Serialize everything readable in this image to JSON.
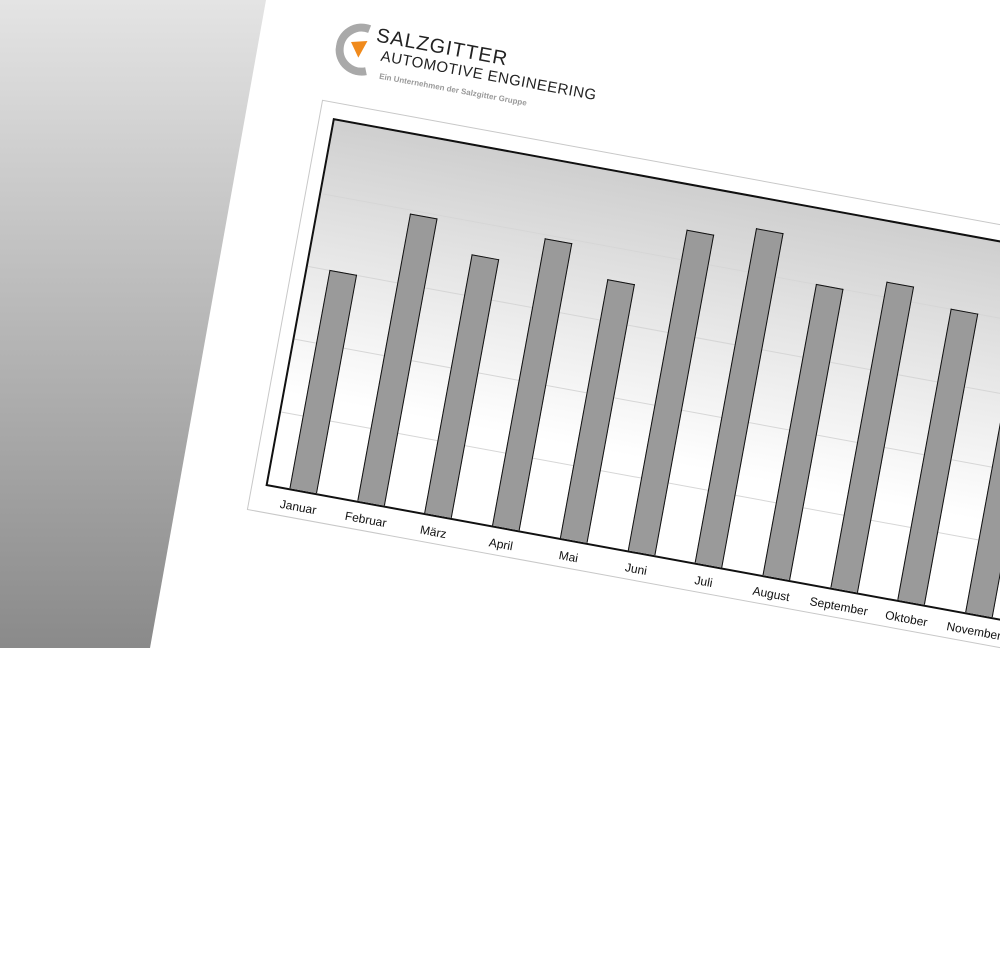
{
  "logo": {
    "line1": "SALZGITTER",
    "line2": "AUTOMOTIVE ENGINEERING",
    "tagline": "Ein Unternehmen der Salzgitter Gruppe",
    "accent_color": "#f08a1c",
    "ring_color": "#a9a9a9"
  },
  "chart_data": {
    "type": "bar",
    "title": "",
    "xlabel": "",
    "ylabel": "",
    "ylim": [
      0,
      100
    ],
    "grid": true,
    "categories": [
      "Januar",
      "Februar",
      "März",
      "April",
      "Mai",
      "Juni",
      "Juli",
      "August",
      "September",
      "Oktober",
      "November"
    ],
    "values": [
      60,
      79,
      71,
      79,
      71,
      88,
      92,
      80,
      84,
      80,
      78
    ],
    "bar_color": "#9a9a9a"
  }
}
